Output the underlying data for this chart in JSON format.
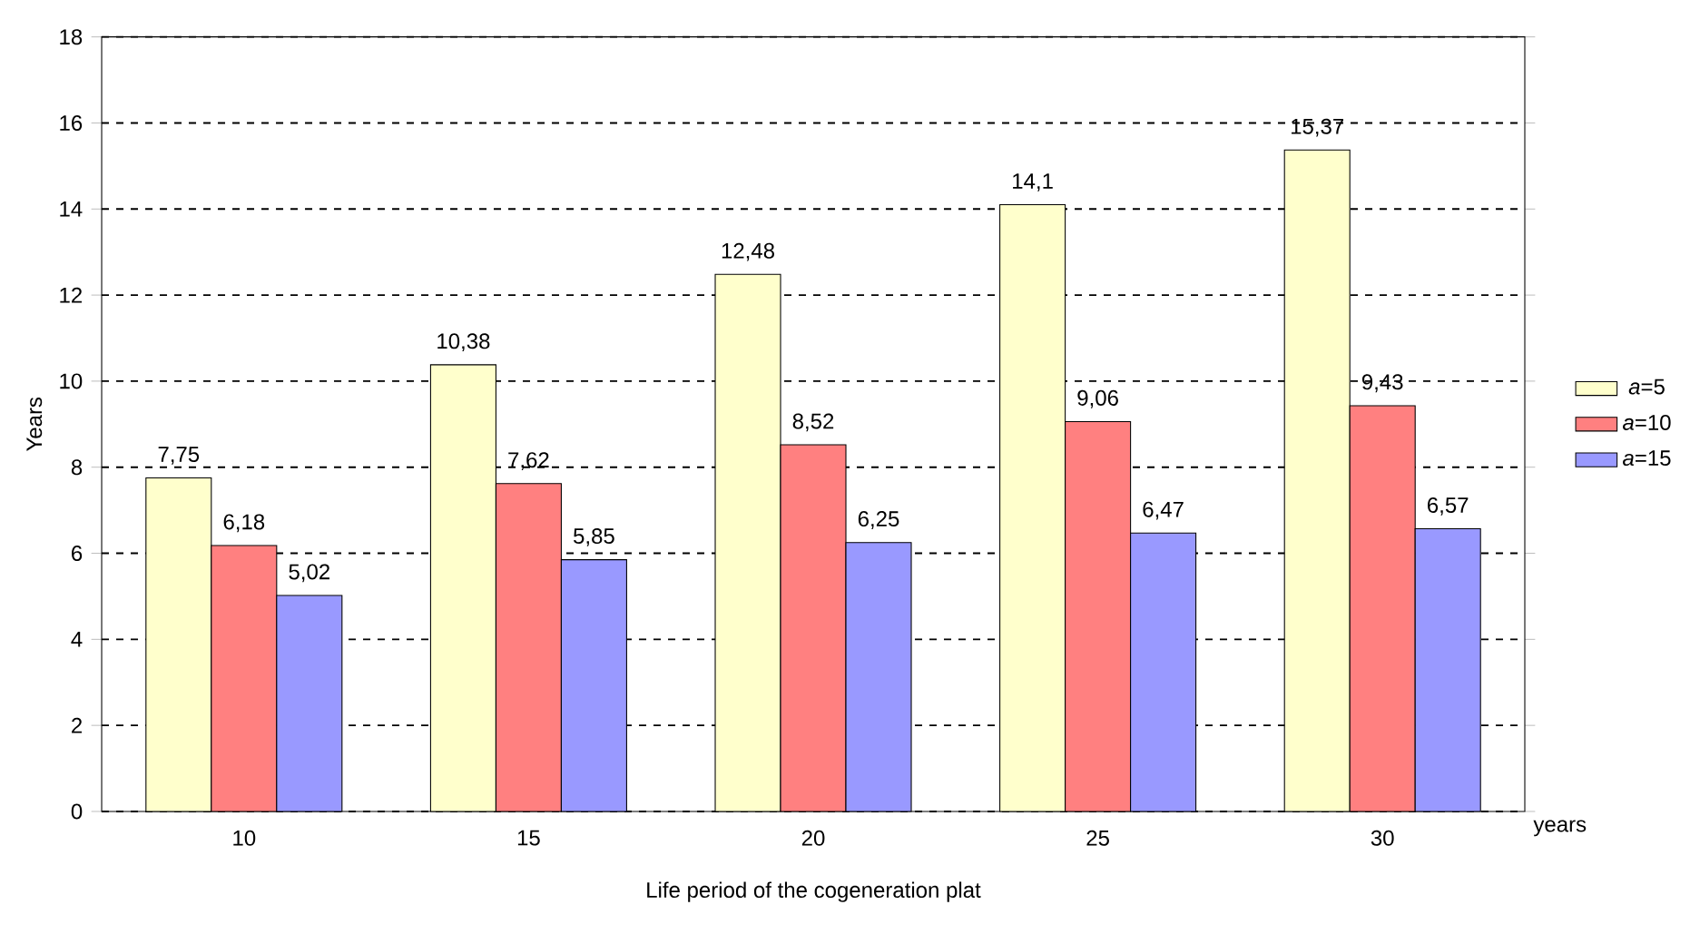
{
  "chart_data": {
    "type": "bar",
    "xlabel": "Life period of the cogeneration plat",
    "ylabel": "Years",
    "categories": [
      "10",
      "15",
      "20",
      "25",
      "30"
    ],
    "series": [
      {
        "name": "*a*=5",
        "color": "#ffffcc",
        "values": [
          7.75,
          10.38,
          12.48,
          14.1,
          15.37
        ],
        "value_labels": [
          "7,75",
          "10,38",
          "12,48",
          "14,1",
          "15,37"
        ]
      },
      {
        "name": "*a*=10",
        "color": "#ff8080",
        "values": [
          6.18,
          7.62,
          8.52,
          9.06,
          9.43
        ],
        "value_labels": [
          "6,18",
          "7,62",
          "8,52",
          "9,06",
          "9,43"
        ]
      },
      {
        "name": "*a*=15",
        "color": "#9999ff",
        "values": [
          5.02,
          5.85,
          6.25,
          6.47,
          6.57
        ],
        "value_labels": [
          "5,02",
          "5,85",
          "6,25",
          "6,47",
          "6,57"
        ]
      }
    ],
    "annotations": [
      "years"
    ],
    "ylim": [
      0,
      18
    ],
    "yticks": [
      0,
      2,
      4,
      6,
      8,
      10,
      12,
      14,
      16,
      18
    ],
    "grid": "y",
    "legend": "right"
  }
}
